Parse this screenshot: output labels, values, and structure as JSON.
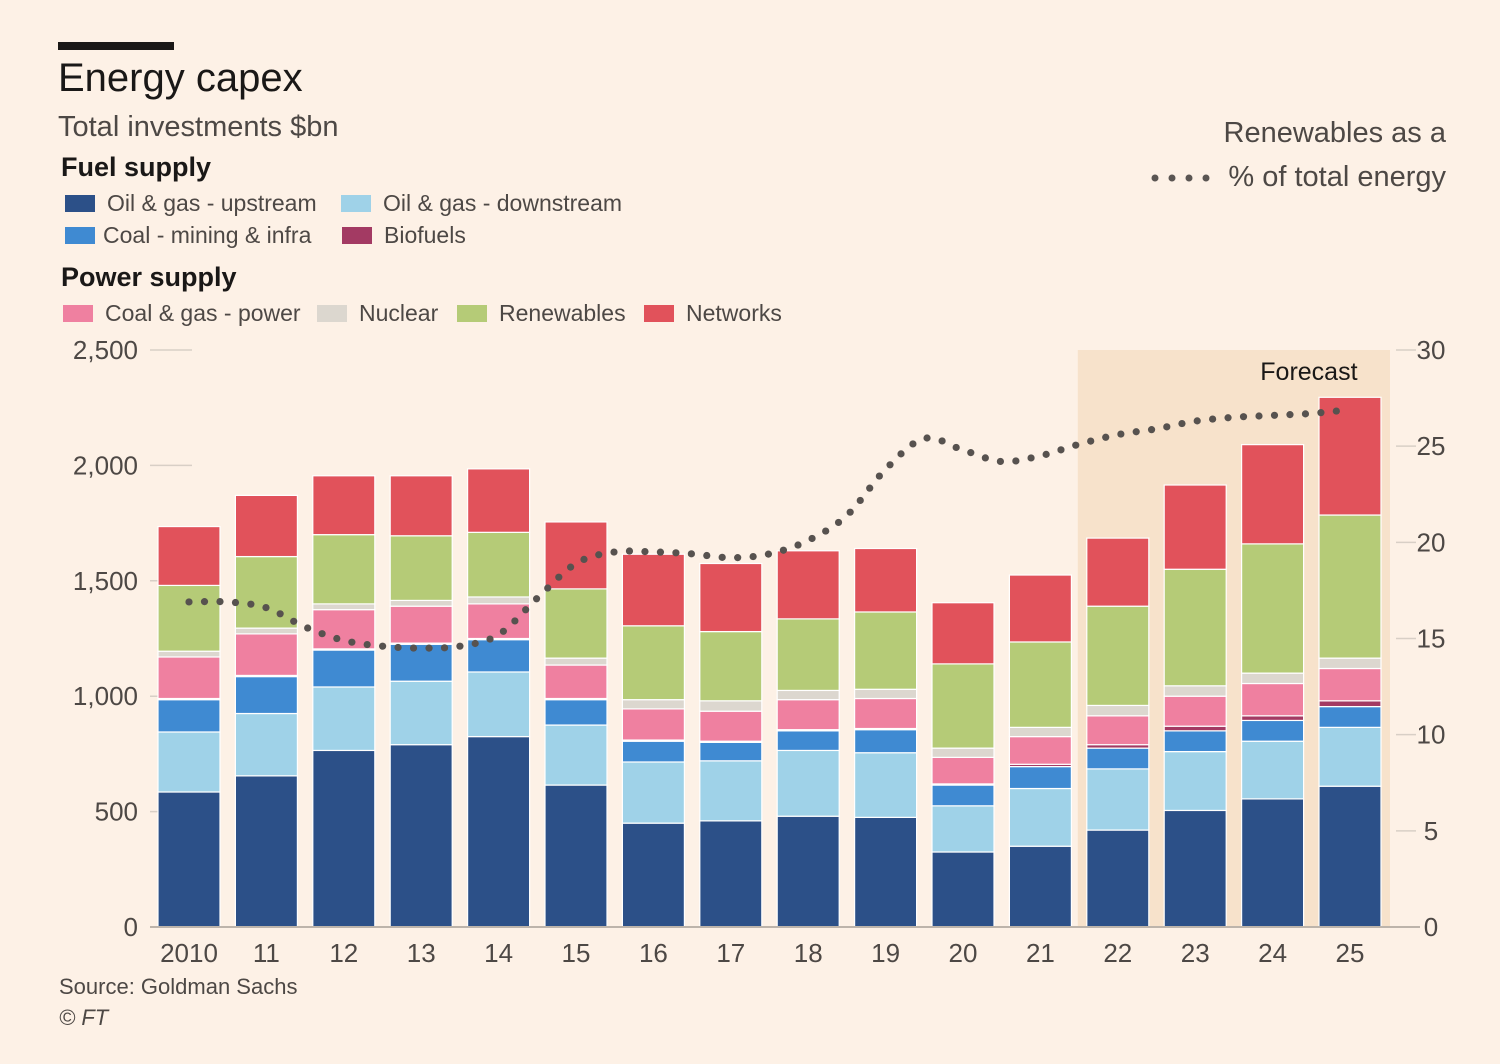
{
  "header": {
    "title": "Energy capex",
    "subtitle": "Total investments $bn"
  },
  "legend": {
    "fuel_heading": "Fuel supply",
    "power_heading": "Power supply",
    "items": [
      {
        "label": "Oil & gas - upstream",
        "color": "#2c5088"
      },
      {
        "label": "Oil & gas - downstream",
        "color": "#9fd2e8"
      },
      {
        "label": "Coal - mining & infra",
        "color": "#3f8ad2"
      },
      {
        "label": "Biofuels",
        "color": "#a33a63"
      },
      {
        "label": "Coal & gas - power",
        "color": "#ef80a0"
      },
      {
        "label": "Nuclear",
        "color": "#dcd7cf"
      },
      {
        "label": "Renewables",
        "color": "#b5cb77"
      },
      {
        "label": "Networks",
        "color": "#e1525b"
      }
    ],
    "line_label_1": "Renewables as a",
    "line_label_2": "% of total energy"
  },
  "footer": {
    "source": "Source: Goldman Sachs",
    "copyright": "© FT"
  },
  "chart_data": {
    "type": "bar",
    "stacked": true,
    "categories": [
      "2010",
      "11",
      "12",
      "13",
      "14",
      "15",
      "16",
      "17",
      "18",
      "19",
      "20",
      "21",
      "22",
      "23",
      "24",
      "25"
    ],
    "forecast_label": "Forecast",
    "forecast_categories": [
      "22",
      "23",
      "24",
      "25"
    ],
    "ylim": [
      0,
      2500
    ],
    "yticks": [
      0,
      500,
      1000,
      1500,
      2000,
      2500
    ],
    "y2lim": [
      0,
      30
    ],
    "y2ticks": [
      0,
      5,
      10,
      15,
      20,
      25,
      30
    ],
    "series": [
      {
        "name": "Oil & gas - upstream",
        "values": [
          585,
          655,
          765,
          790,
          825,
          615,
          450,
          460,
          480,
          475,
          325,
          350,
          420,
          505,
          555,
          610
        ]
      },
      {
        "name": "Oil & gas - downstream",
        "values": [
          260,
          270,
          275,
          275,
          280,
          260,
          265,
          260,
          285,
          280,
          200,
          250,
          265,
          255,
          250,
          255
        ]
      },
      {
        "name": "Coal - mining & infra",
        "values": [
          140,
          160,
          160,
          160,
          140,
          110,
          90,
          80,
          85,
          100,
          90,
          95,
          90,
          90,
          90,
          90
        ]
      },
      {
        "name": "Biofuels",
        "values": [
          5,
          5,
          5,
          5,
          5,
          5,
          5,
          5,
          5,
          5,
          5,
          10,
          15,
          20,
          20,
          25
        ]
      },
      {
        "name": "Coal & gas - power",
        "values": [
          180,
          180,
          170,
          160,
          150,
          145,
          135,
          130,
          130,
          130,
          115,
          120,
          125,
          130,
          140,
          140
        ]
      },
      {
        "name": "Nuclear",
        "values": [
          25,
          25,
          25,
          25,
          30,
          30,
          40,
          45,
          40,
          40,
          40,
          40,
          45,
          45,
          45,
          45
        ]
      },
      {
        "name": "Renewables",
        "values": [
          285,
          310,
          300,
          280,
          280,
          300,
          320,
          300,
          310,
          335,
          365,
          370,
          430,
          505,
          560,
          620
        ]
      },
      {
        "name": "Networks",
        "values": [
          255,
          265,
          255,
          260,
          275,
          290,
          310,
          295,
          295,
          275,
          265,
          290,
          295,
          365,
          430,
          510
        ]
      }
    ],
    "line": {
      "name": "Renewables as a % of total energy",
      "axis": "right",
      "x": [
        0,
        0.5,
        1,
        1.5,
        2,
        2.5,
        3,
        3.5,
        4,
        4.5,
        5,
        5.5,
        6,
        6.5,
        7,
        7.5,
        8,
        8.5,
        9,
        9.5,
        10,
        10.5,
        11,
        11.5,
        12,
        12.5,
        13,
        13.5,
        14,
        14.5,
        15
      ],
      "values": [
        16.9,
        16.9,
        16.6,
        15.6,
        14.9,
        14.6,
        14.5,
        14.6,
        15.2,
        17.1,
        18.9,
        19.5,
        19.5,
        19.4,
        19.2,
        19.4,
        20.1,
        21.4,
        23.8,
        25.4,
        24.8,
        24.2,
        24.5,
        25.1,
        25.6,
        25.9,
        26.3,
        26.5,
        26.6,
        26.7,
        26.9
      ]
    }
  }
}
